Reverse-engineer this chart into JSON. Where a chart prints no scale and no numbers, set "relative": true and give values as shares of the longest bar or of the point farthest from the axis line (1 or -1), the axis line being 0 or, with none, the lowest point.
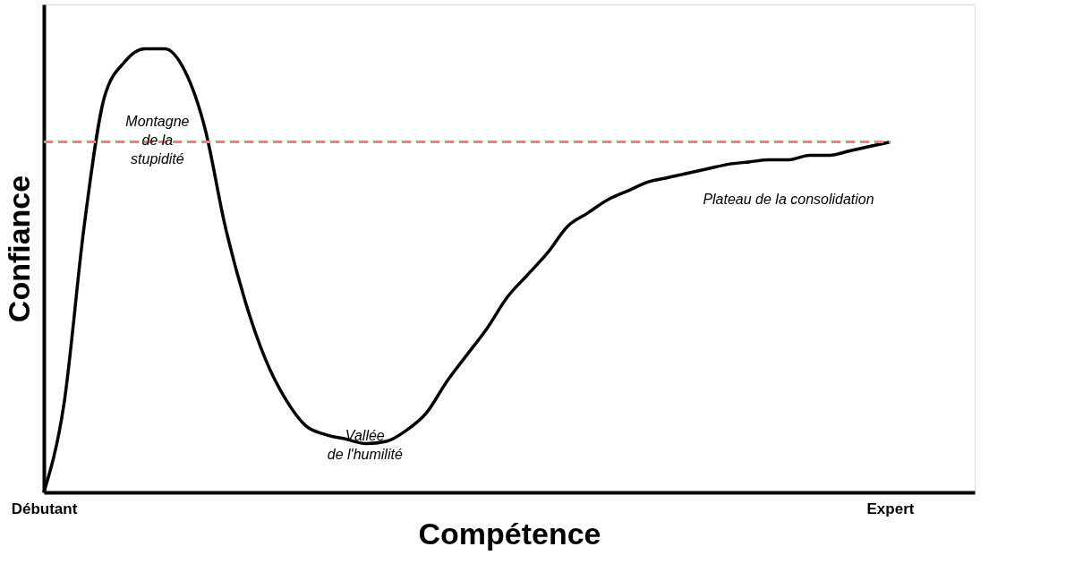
{
  "chart_data": {
    "type": "line",
    "relative": true,
    "xlabel": "Compétence",
    "ylabel": "Confiance",
    "categories": [
      "Débutant",
      null,
      null,
      null,
      null,
      null,
      null,
      null,
      null,
      null,
      null,
      null,
      null,
      null,
      null,
      null,
      null,
      null,
      null,
      null,
      null,
      null,
      null,
      null,
      null,
      null,
      null,
      null,
      null,
      null,
      null,
      null,
      null,
      null,
      null,
      null,
      null,
      null,
      null,
      null,
      null,
      null,
      "Expert"
    ],
    "series": [
      {
        "color": "#000000",
        "values": [
          0,
          0.2,
          0.6,
          0.89,
          0.97,
          1.0,
          1.0,
          0.95,
          0.82,
          0.6,
          0.43,
          0.3,
          0.21,
          0.15,
          0.13,
          0.12,
          0.11,
          0.115,
          0.14,
          0.18,
          0.25,
          0.31,
          0.37,
          0.44,
          0.49,
          0.54,
          0.6,
          0.63,
          0.66,
          0.68,
          0.7,
          0.71,
          0.72,
          0.73,
          0.74,
          0.745,
          0.75,
          0.75,
          0.76,
          0.76,
          0.77,
          0.78,
          0.79
        ]
      }
    ],
    "ref_lines": [
      {
        "axis": "y",
        "value": 0.79,
        "color": "#f08080",
        "line_style": "dashed"
      }
    ],
    "annotations": [
      "Montagne\nde la\nstupidité",
      "Vallée\n\nde l'humilité",
      "Plateau de la consolidation"
    ],
    "grid": false,
    "marker": "none",
    "line_style": "solid"
  }
}
